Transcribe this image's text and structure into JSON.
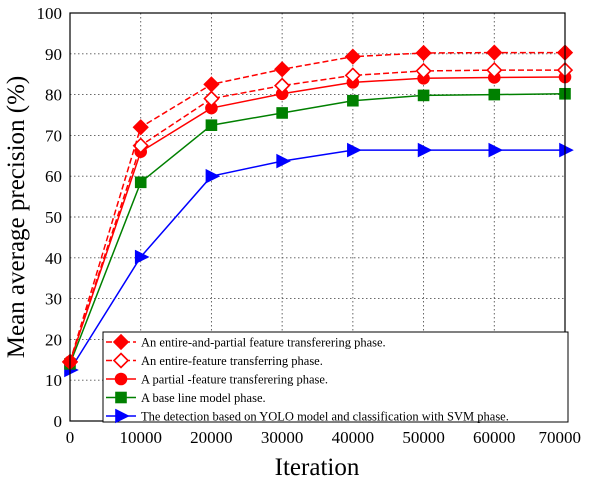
{
  "chart_data": {
    "type": "line",
    "xlabel": "Iteration",
    "ylabel": "Mean average precision (%)",
    "xlim": [
      0,
      70000
    ],
    "ylim": [
      0,
      100
    ],
    "xticks": [
      0,
      10000,
      20000,
      30000,
      40000,
      50000,
      60000,
      70000
    ],
    "yticks": [
      0,
      10,
      20,
      30,
      40,
      50,
      60,
      70,
      80,
      90,
      100
    ],
    "grid": true,
    "legend_position": "bottom-right",
    "x": [
      0,
      10000,
      20000,
      30000,
      40000,
      50000,
      60000,
      70000
    ],
    "series": [
      {
        "name": "An entire-and-partial feature transferering  phase.",
        "values": [
          14.5,
          72,
          82.5,
          86.2,
          89.3,
          90.2,
          90.3,
          90.3
        ],
        "color": "#ff0000",
        "marker": "diamond",
        "filled": true,
        "dashed": true
      },
      {
        "name": "An entire-feature transferring phase.",
        "values": [
          14.5,
          67.5,
          79,
          82.2,
          84.7,
          85.8,
          86,
          86
        ],
        "color": "#ff0000",
        "marker": "diamond",
        "filled": false,
        "dashed": true
      },
      {
        "name": "A partial -feature transferering phase.",
        "values": [
          14.5,
          66,
          76.7,
          80.2,
          83,
          84,
          84.2,
          84.3
        ],
        "color": "#ff0000",
        "marker": "circle",
        "filled": true,
        "dashed": false
      },
      {
        "name": "A base line model phase.",
        "values": [
          14,
          58.5,
          72.5,
          75.5,
          78.5,
          79.8,
          80,
          80.2
        ],
        "color": "#008000",
        "marker": "square",
        "filled": true,
        "dashed": false
      },
      {
        "name": "The detection based on YOLO model and classification with SVM phase.",
        "values": [
          12.5,
          40.2,
          60,
          63.7,
          66.4,
          66.4,
          66.4,
          66.4
        ],
        "color": "#0000ff",
        "marker": "triangle-right",
        "filled": true,
        "dashed": false
      }
    ]
  }
}
